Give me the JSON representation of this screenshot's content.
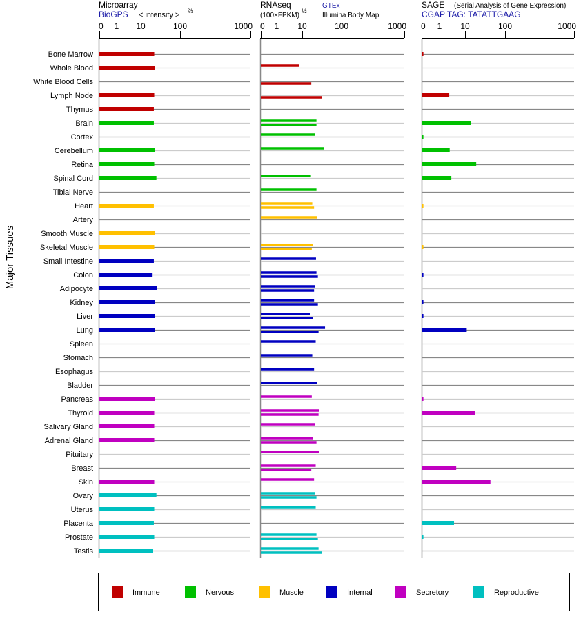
{
  "chart_data": {
    "type": "bar",
    "y_axis_label": "Major Tissues",
    "panels": [
      {
        "key": "microarray",
        "title": "Microarray",
        "source": "BioGPS",
        "unit_label": "< intensity >",
        "unit_exp": "⅔",
        "ticks": [
          "0",
          "1",
          "10",
          "100",
          "1000"
        ],
        "xlim": [
          0,
          1000
        ]
      },
      {
        "key": "rnaseq",
        "title": "RNAseq",
        "unit_label": "(100×FPKM)",
        "unit_exp": "½",
        "series": [
          "GTEx",
          "Illumina Body Map"
        ],
        "ticks": [
          "0",
          "1",
          "10",
          "100",
          "1000"
        ],
        "xlim": [
          0,
          1000
        ]
      },
      {
        "key": "sage",
        "title": "SAGE",
        "subtitle": "(Serial Analysis of Gene Expression)",
        "source": "CGAP TAG: TATATTGAAG",
        "ticks": [
          "0",
          "1",
          "10",
          "100",
          "1000"
        ],
        "xlim": [
          0,
          1000
        ]
      }
    ],
    "legend": [
      {
        "group": "immune",
        "label": "Immune",
        "color": "#c00000"
      },
      {
        "group": "nervous",
        "label": "Nervous",
        "color": "#00c000"
      },
      {
        "group": "muscle",
        "label": "Muscle",
        "color": "#ffc000"
      },
      {
        "group": "internal",
        "label": "Internal",
        "color": "#0000c0"
      },
      {
        "group": "secretory",
        "label": "Secretory",
        "color": "#c000c0"
      },
      {
        "group": "reproductive",
        "label": "Reproductive",
        "color": "#00c0c0"
      }
    ],
    "tissues": [
      {
        "name": "Bone Marrow",
        "group": "immune",
        "microarray": 22,
        "gtex": null,
        "illumina": null,
        "sage": 0.1
      },
      {
        "name": "Whole Blood",
        "group": "immune",
        "microarray": 23,
        "gtex": 7.8,
        "illumina": null,
        "sage": null
      },
      {
        "name": "White Blood Cells",
        "group": "immune",
        "microarray": null,
        "gtex": null,
        "illumina": 17,
        "sage": null
      },
      {
        "name": "Lymph Node",
        "group": "immune",
        "microarray": 22,
        "gtex": null,
        "illumina": 32,
        "sage": 2.4
      },
      {
        "name": "Thymus",
        "group": "immune",
        "microarray": 21.5,
        "gtex": null,
        "illumina": null,
        "sage": null
      },
      {
        "name": "Brain",
        "group": "nervous",
        "microarray": 21.5,
        "gtex": 23,
        "illumina": 23,
        "sage": 14
      },
      {
        "name": "Cortex",
        "group": "nervous",
        "microarray": null,
        "gtex": 21,
        "illumina": null,
        "sage": 0.1
      },
      {
        "name": "Cerebellum",
        "group": "nervous",
        "microarray": 23,
        "gtex": 35,
        "illumina": null,
        "sage": 2.5
      },
      {
        "name": "Retina",
        "group": "nervous",
        "microarray": 22,
        "gtex": null,
        "illumina": null,
        "sage": 19
      },
      {
        "name": "Spinal Cord",
        "group": "nervous",
        "microarray": 25,
        "gtex": 16,
        "illumina": null,
        "sage": 2.9
      },
      {
        "name": "Tibial Nerve",
        "group": "nervous",
        "microarray": null,
        "gtex": 23,
        "illumina": null,
        "sage": null
      },
      {
        "name": "Heart",
        "group": "muscle",
        "microarray": 21.5,
        "gtex": 18,
        "illumina": 20,
        "sage": 0.1
      },
      {
        "name": "Artery",
        "group": "muscle",
        "microarray": null,
        "gtex": 24,
        "illumina": null,
        "sage": null
      },
      {
        "name": "Smooth Muscle",
        "group": "muscle",
        "microarray": 23,
        "gtex": null,
        "illumina": null,
        "sage": null
      },
      {
        "name": "Skeletal Muscle",
        "group": "muscle",
        "microarray": 22,
        "gtex": 19,
        "illumina": 17.5,
        "sage": 0.1
      },
      {
        "name": "Small Intestine",
        "group": "internal",
        "microarray": 21.5,
        "gtex": 22.4,
        "illumina": null,
        "sage": null
      },
      {
        "name": "Colon",
        "group": "internal",
        "microarray": 20,
        "gtex": 23,
        "illumina": 25,
        "sage": 0.1
      },
      {
        "name": "Adipocyte",
        "group": "internal",
        "microarray": 26,
        "gtex": 21,
        "illumina": 20,
        "sage": null
      },
      {
        "name": "Kidney",
        "group": "internal",
        "microarray": 23,
        "gtex": 20,
        "illumina": 25,
        "sage": 0.1
      },
      {
        "name": "Liver",
        "group": "internal",
        "microarray": 23,
        "gtex": 15.6,
        "illumina": 19,
        "sage": 0.1
      },
      {
        "name": "Lung",
        "group": "internal",
        "microarray": 23,
        "gtex": 38,
        "illumina": 26,
        "sage": 11
      },
      {
        "name": "Spleen",
        "group": "internal",
        "microarray": null,
        "gtex": 22,
        "illumina": null,
        "sage": null
      },
      {
        "name": "Stomach",
        "group": "internal",
        "microarray": null,
        "gtex": 18,
        "illumina": null,
        "sage": null
      },
      {
        "name": "Esophagus",
        "group": "internal",
        "microarray": null,
        "gtex": 20,
        "illumina": null,
        "sage": null
      },
      {
        "name": "Bladder",
        "group": "internal",
        "microarray": null,
        "gtex": 24,
        "illumina": null,
        "sage": null
      },
      {
        "name": "Pancreas",
        "group": "secretory",
        "microarray": 23,
        "gtex": 17.5,
        "illumina": null,
        "sage": 0.1
      },
      {
        "name": "Thyroid",
        "group": "secretory",
        "microarray": 22,
        "gtex": 27,
        "illumina": 26,
        "sage": 17.5
      },
      {
        "name": "Salivary Gland",
        "group": "secretory",
        "microarray": 22,
        "gtex": 21,
        "illumina": null,
        "sage": null
      },
      {
        "name": "Adrenal Gland",
        "group": "secretory",
        "microarray": 22,
        "gtex": 19,
        "illumina": 23,
        "sage": null
      },
      {
        "name": "Pituitary",
        "group": "secretory",
        "microarray": null,
        "gtex": 27,
        "illumina": null,
        "sage": null
      },
      {
        "name": "Breast",
        "group": "secretory",
        "microarray": null,
        "gtex": 22,
        "illumina": 17,
        "sage": 4.5
      },
      {
        "name": "Skin",
        "group": "secretory",
        "microarray": 22,
        "gtex": 20,
        "illumina": null,
        "sage": 43
      },
      {
        "name": "Ovary",
        "group": "reproductive",
        "microarray": 25,
        "gtex": 21,
        "illumina": 23,
        "sage": null
      },
      {
        "name": "Uterus",
        "group": "reproductive",
        "microarray": 22,
        "gtex": 22,
        "illumina": null,
        "sage": null
      },
      {
        "name": "Placenta",
        "group": "reproductive",
        "microarray": 21.5,
        "gtex": null,
        "illumina": null,
        "sage": 3.7
      },
      {
        "name": "Prostate",
        "group": "reproductive",
        "microarray": 22,
        "gtex": 23,
        "illumina": 25,
        "sage": 0.1
      },
      {
        "name": "Testis",
        "group": "reproductive",
        "microarray": 20.7,
        "gtex": 26,
        "illumina": 31,
        "sage": null
      }
    ]
  }
}
